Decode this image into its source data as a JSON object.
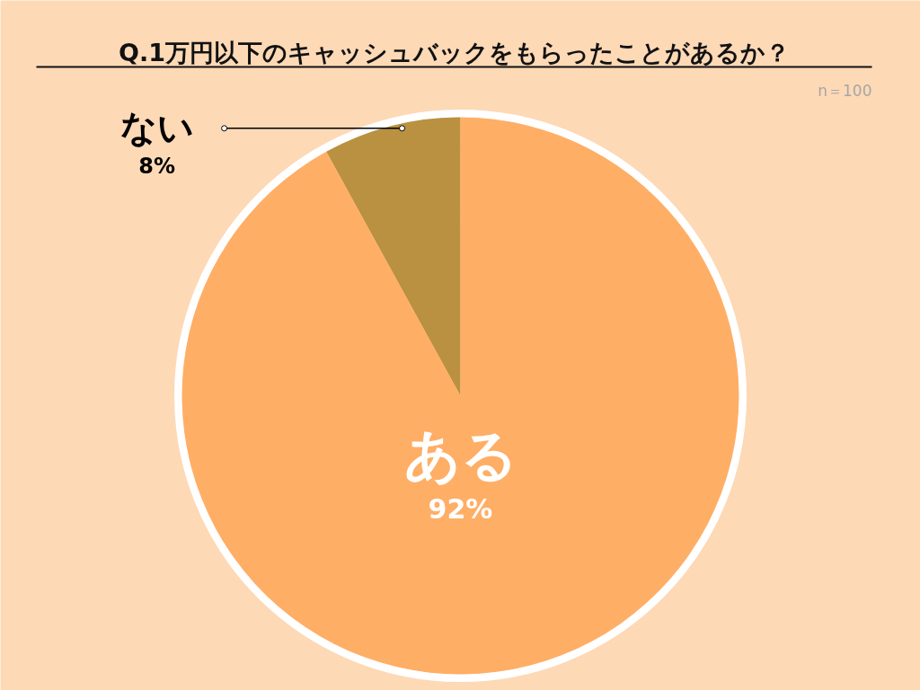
{
  "chart_data": {
    "type": "pie",
    "title": "Q.1万円以下のキャッシュバックをもらったことがあるか？",
    "categories": [
      "ない",
      "ある"
    ],
    "values": [
      8,
      92
    ],
    "colors": [
      "#b99140",
      "#ffae66"
    ],
    "value_labels": [
      "8%",
      "92%"
    ],
    "annotations": [
      "n＝100"
    ]
  }
}
